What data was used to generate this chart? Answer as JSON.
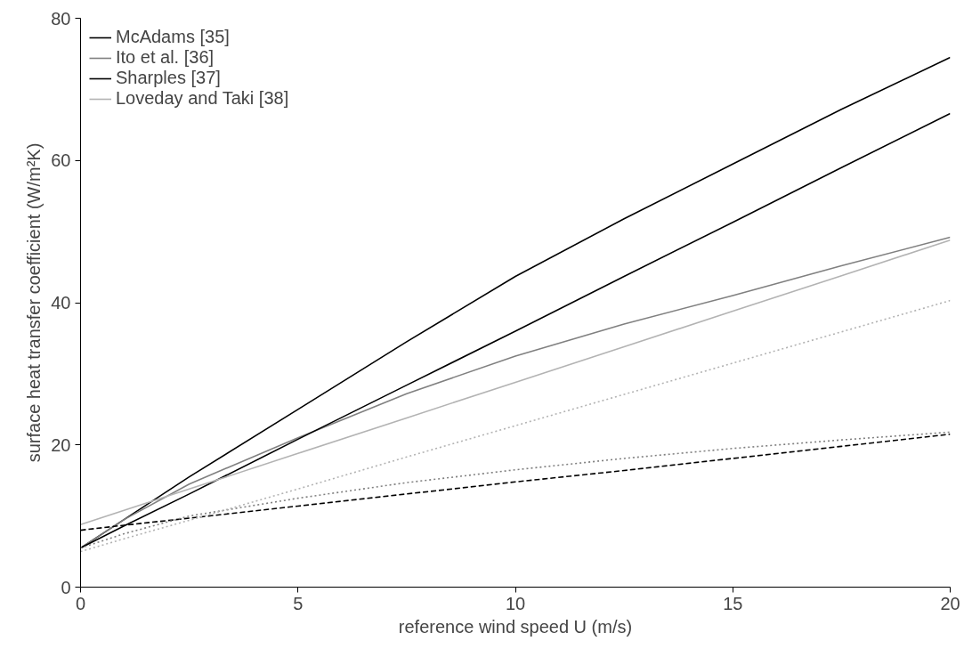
{
  "chart_data": {
    "type": "line",
    "xlabel": "reference wind speed U (m/s)",
    "ylabel": "surface heat transfer coefficient (W/m²K)",
    "xlim": [
      0,
      20
    ],
    "ylim": [
      0,
      80
    ],
    "xticks": [
      0,
      5,
      10,
      15,
      20
    ],
    "yticks": [
      0,
      20,
      40,
      60,
      80
    ],
    "grid": false,
    "legend": "top left",
    "marker": "none",
    "x": [
      0,
      1,
      2.5,
      5,
      7.5,
      10,
      12.5,
      15,
      17.5,
      20
    ],
    "series": [
      {
        "name": "McAdams [35]",
        "color": "#000000",
        "line_style": "solid",
        "values": [
          5.5,
          9.5,
          15.5,
          25,
          34.5,
          43.7,
          51.8,
          59.5,
          67.2,
          74.5
        ]
      },
      {
        "name": "Ito et al. [36]",
        "color": "#808080",
        "line_style": "solid",
        "values": [
          5.5,
          9.5,
          14.5,
          21,
          27.2,
          32.5,
          37,
          41,
          45.2,
          49.2
        ]
      },
      {
        "name": "Sharples [37]",
        "color": "#000000",
        "line_style": "solid",
        "values": [
          5.5,
          8.6,
          13.1,
          20.8,
          28.4,
          36,
          43.7,
          51.3,
          59,
          66.6
        ]
      },
      {
        "name": "Loveday and Taki [38]",
        "color": "#b3b3b3",
        "line_style": "solid",
        "values": [
          8.8,
          10.8,
          13.8,
          18.8,
          23.8,
          28.8,
          33.8,
          38.8,
          43.8,
          48.8
        ]
      },
      {
        "color": "#000000",
        "line_style": "dashed",
        "values": [
          8,
          8.7,
          9.7,
          11.4,
          13.1,
          14.8,
          16.4,
          18.1,
          19.8,
          21.5
        ]
      },
      {
        "color": "#808080",
        "line_style": "dotted",
        "values": [
          5.5,
          7.5,
          10,
          12.5,
          14.7,
          16.5,
          18.1,
          19.5,
          20.7,
          21.8
        ]
      },
      {
        "color": "#b3b3b3",
        "line_style": "dotted",
        "values": [
          5,
          6.8,
          9.4,
          13.8,
          18.3,
          22.7,
          27.1,
          31.5,
          35.9,
          40.3
        ]
      }
    ]
  }
}
